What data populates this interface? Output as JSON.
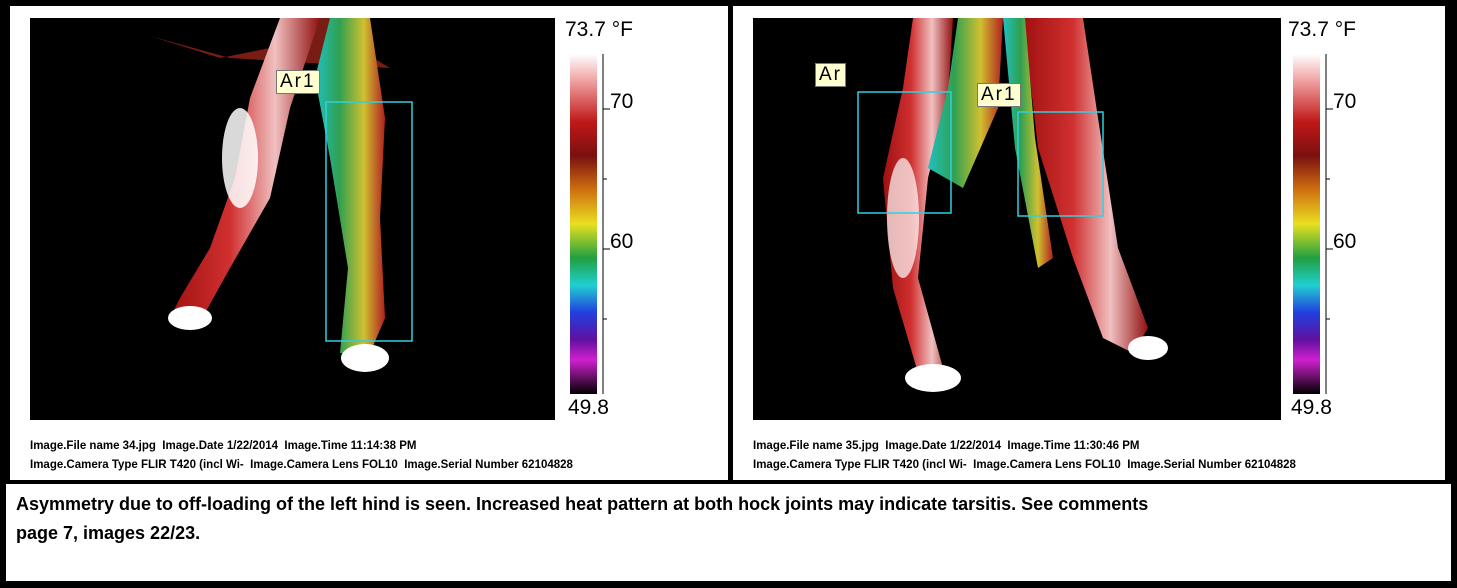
{
  "panels": [
    {
      "scale_max": "73.7 °F",
      "scale_ticks": [
        "70",
        "60"
      ],
      "scale_min": "49.8",
      "regions": [
        "Ar1"
      ],
      "info_lines": [
        "Image.File name 34.jpg  Image.Date 1/22/2014  Image.Time 11:14:38 PM",
        "Image.Camera Type FLIR T420 (incl Wi-  Image.Camera Lens FOL10  Image.Serial Number 62104828"
      ]
    },
    {
      "scale_max": "73.7 °F",
      "scale_ticks": [
        "70",
        "60"
      ],
      "scale_min": "49.8",
      "regions": [
        "Ar",
        "Ar1"
      ],
      "info_lines": [
        "Image.File name 35.jpg  Image.Date 1/22/2014  Image.Time 11:30:46 PM",
        "Image.Camera Type FLIR T420 (incl Wi-  Image.Camera Lens FOL10  Image.Serial Number 62104828"
      ]
    }
  ],
  "caption": "Asymmetry due to off-loading of the left hind is seen. Increased heat pattern at both hock joints may indicate tarsitis. See comments page 7, images 22/23."
}
